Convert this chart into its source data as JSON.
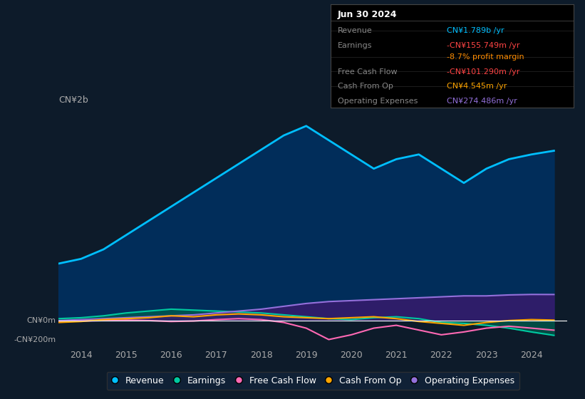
{
  "background_color": "#0d1b2a",
  "plot_bg_color": "#0d1b2a",
  "ylabel_top": "CN¥2b",
  "ymax": 2200000000,
  "ymin": -280000000,
  "xmin": 2013.5,
  "xmax": 2024.8,
  "grid_color": "#1e3550",
  "legend_items": [
    "Revenue",
    "Earnings",
    "Free Cash Flow",
    "Cash From Op",
    "Operating Expenses"
  ],
  "legend_colors": [
    "#00bfff",
    "#00c8a0",
    "#ff69b4",
    "#ffa500",
    "#9370db"
  ],
  "info_box": {
    "title": "Jun 30 2024",
    "rows": [
      {
        "label": "Revenue",
        "value": "CN¥1.789b /yr",
        "value_color": "#00bfff"
      },
      {
        "label": "Earnings",
        "value": "-CN¥155.749m /yr",
        "value_color": "#ff4444"
      },
      {
        "label": "",
        "value": "-8.7% profit margin",
        "value_color": "#ff8c00"
      },
      {
        "label": "Free Cash Flow",
        "value": "-CN¥101.290m /yr",
        "value_color": "#ff4444"
      },
      {
        "label": "Cash From Op",
        "value": "CN¥4.545m /yr",
        "value_color": "#ffa500"
      },
      {
        "label": "Operating Expenses",
        "value": "CN¥274.486m /yr",
        "value_color": "#9370db"
      }
    ]
  },
  "revenue": {
    "x": [
      2013.5,
      2014.0,
      2014.5,
      2015.0,
      2015.5,
      2016.0,
      2016.5,
      2017.0,
      2017.5,
      2018.0,
      2018.5,
      2019.0,
      2019.5,
      2020.0,
      2020.5,
      2021.0,
      2021.5,
      2022.0,
      2022.5,
      2023.0,
      2023.5,
      2024.0,
      2024.5
    ],
    "y": [
      600000000,
      650000000,
      750000000,
      900000000,
      1050000000,
      1200000000,
      1350000000,
      1500000000,
      1650000000,
      1800000000,
      1950000000,
      2050000000,
      1900000000,
      1750000000,
      1600000000,
      1700000000,
      1750000000,
      1600000000,
      1450000000,
      1600000000,
      1700000000,
      1750000000,
      1789000000
    ],
    "color": "#00bfff",
    "fill_color": "#003060",
    "linewidth": 2.0
  },
  "earnings": {
    "x": [
      2013.5,
      2014.0,
      2014.5,
      2015.0,
      2015.5,
      2016.0,
      2016.5,
      2017.0,
      2017.5,
      2018.0,
      2018.5,
      2019.0,
      2019.5,
      2020.0,
      2020.5,
      2021.0,
      2021.5,
      2022.0,
      2022.5,
      2023.0,
      2023.5,
      2024.0,
      2024.5
    ],
    "y": [
      20000000,
      30000000,
      50000000,
      80000000,
      100000000,
      120000000,
      110000000,
      100000000,
      90000000,
      80000000,
      60000000,
      40000000,
      20000000,
      10000000,
      30000000,
      40000000,
      20000000,
      -20000000,
      -30000000,
      -50000000,
      -80000000,
      -120000000,
      -155749000
    ],
    "color": "#00c8a0",
    "fill_color": "#006050",
    "linewidth": 1.5
  },
  "free_cash_flow": {
    "x": [
      2013.5,
      2014.0,
      2014.5,
      2015.0,
      2015.5,
      2016.0,
      2016.5,
      2017.0,
      2017.5,
      2018.0,
      2018.5,
      2019.0,
      2019.5,
      2020.0,
      2020.5,
      2021.0,
      2021.5,
      2022.0,
      2022.5,
      2023.0,
      2023.5,
      2024.0,
      2024.5
    ],
    "y": [
      -10000000,
      -5000000,
      0,
      5000000,
      0,
      -10000000,
      -5000000,
      10000000,
      20000000,
      10000000,
      -20000000,
      -80000000,
      -200000000,
      -150000000,
      -80000000,
      -50000000,
      -100000000,
      -150000000,
      -120000000,
      -80000000,
      -60000000,
      -80000000,
      -101290000
    ],
    "color": "#ff69b4",
    "linewidth": 1.5
  },
  "cash_from_op": {
    "x": [
      2013.5,
      2014.0,
      2014.5,
      2015.0,
      2015.5,
      2016.0,
      2016.5,
      2017.0,
      2017.5,
      2018.0,
      2018.5,
      2019.0,
      2019.5,
      2020.0,
      2020.5,
      2021.0,
      2021.5,
      2022.0,
      2022.5,
      2023.0,
      2023.5,
      2024.0,
      2024.5
    ],
    "y": [
      -20000000,
      -10000000,
      10000000,
      20000000,
      30000000,
      50000000,
      40000000,
      60000000,
      70000000,
      60000000,
      40000000,
      30000000,
      20000000,
      30000000,
      40000000,
      20000000,
      -10000000,
      -30000000,
      -50000000,
      -20000000,
      0,
      10000000,
      4545000
    ],
    "color": "#ffa500",
    "linewidth": 1.5
  },
  "operating_expenses": {
    "x": [
      2013.5,
      2014.0,
      2014.5,
      2015.0,
      2015.5,
      2016.0,
      2016.5,
      2017.0,
      2017.5,
      2018.0,
      2018.5,
      2019.0,
      2019.5,
      2020.0,
      2020.5,
      2021.0,
      2021.5,
      2022.0,
      2022.5,
      2023.0,
      2023.5,
      2024.0,
      2024.5
    ],
    "y": [
      0,
      10000000,
      20000000,
      30000000,
      40000000,
      50000000,
      60000000,
      80000000,
      100000000,
      120000000,
      150000000,
      180000000,
      200000000,
      210000000,
      220000000,
      230000000,
      240000000,
      250000000,
      260000000,
      260000000,
      270000000,
      275000000,
      274486000
    ],
    "color": "#9370db",
    "fill_color": "#3a1a6e",
    "linewidth": 1.5
  },
  "xticks": [
    2014,
    2015,
    2016,
    2017,
    2018,
    2019,
    2020,
    2021,
    2022,
    2023,
    2024
  ],
  "tick_color": "#aaaaaa",
  "label_color": "#aaaaaa"
}
